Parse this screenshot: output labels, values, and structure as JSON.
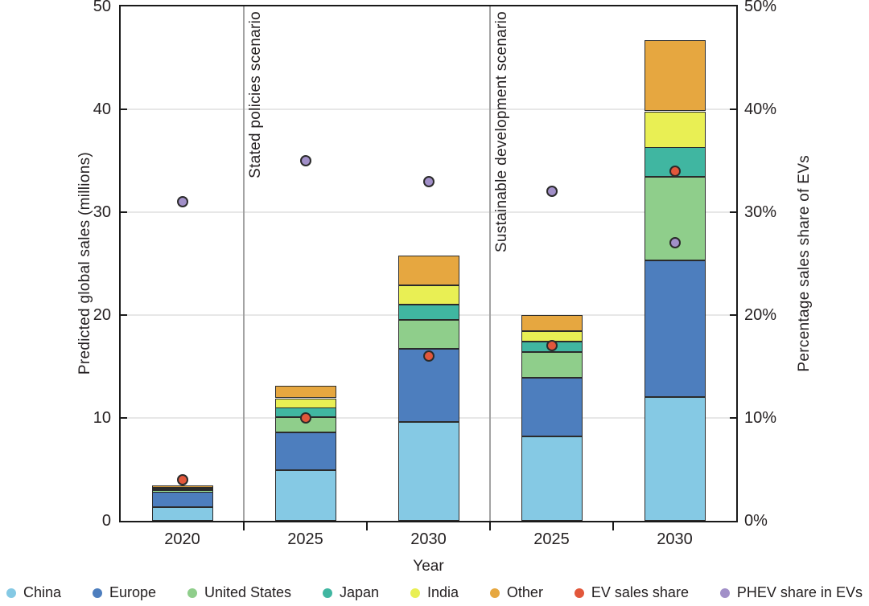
{
  "chart_data": {
    "type": "bar",
    "stacked": true,
    "categories": [
      "2020",
      "2025",
      "2030",
      "2025",
      "2030"
    ],
    "x_axis": {
      "label": "Year"
    },
    "left_axis": {
      "label": "Predicted global sales (millions)",
      "min": 0,
      "max": 50,
      "ticks": [
        "0",
        "10",
        "20",
        "30",
        "40",
        "50"
      ],
      "tick_values": [
        0,
        10,
        20,
        30,
        40,
        50
      ]
    },
    "right_axis": {
      "label": "Percentage sales share of EVs",
      "min": 0,
      "max": 50,
      "ticks": [
        "0%",
        "10%",
        "20%",
        "30%",
        "40%",
        "50%"
      ],
      "tick_values": [
        0,
        10,
        20,
        30,
        40,
        50
      ]
    },
    "grid_values": [
      10,
      20,
      30,
      40
    ],
    "scenarios": [
      {
        "label": "Stated policies scenario",
        "divider_after_category_index": 0
      },
      {
        "label": "Sustainable development scenario",
        "divider_after_category_index": 2
      }
    ],
    "bar_series": [
      {
        "name": "China",
        "color": "#85c9e4",
        "values": [
          1.3,
          4.9,
          9.6,
          8.2,
          12.0
        ]
      },
      {
        "name": "Europe",
        "color": "#4d7ebe",
        "values": [
          1.5,
          3.7,
          7.1,
          5.7,
          13.3
        ]
      },
      {
        "name": "United States",
        "color": "#8fce8b",
        "values": [
          0.2,
          1.5,
          2.8,
          2.5,
          8.1
        ]
      },
      {
        "name": "Japan",
        "color": "#40b6a1",
        "values": [
          0.1,
          0.9,
          1.5,
          1.0,
          2.9
        ]
      },
      {
        "name": "India",
        "color": "#e9ef54",
        "values": [
          0.1,
          0.9,
          1.9,
          1.0,
          3.5
        ]
      },
      {
        "name": "Other",
        "color": "#e6a740",
        "values": [
          0.2,
          1.2,
          2.9,
          1.6,
          6.9
        ]
      }
    ],
    "point_series": [
      {
        "name": "EV sales share",
        "color": "#e2573b",
        "values": [
          4,
          10,
          16,
          17,
          34
        ]
      },
      {
        "name": "PHEV share in EVs",
        "color": "#a18fc8",
        "values": [
          31,
          35,
          33,
          32,
          27
        ]
      }
    ],
    "bar_totals": [
      3.4,
      13.1,
      25.8,
      20.0,
      46.7
    ],
    "colors": {
      "axis": "#1a1a1a",
      "grid": "#e7e7e7",
      "divider": "#a3a3a3",
      "text": "#231f20"
    }
  }
}
